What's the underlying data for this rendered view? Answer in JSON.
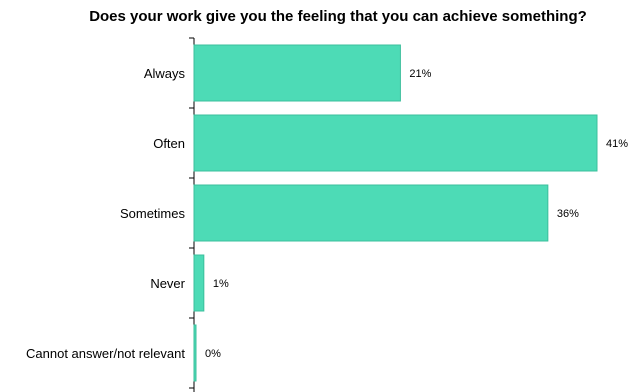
{
  "chart_data": {
    "type": "bar",
    "orientation": "horizontal",
    "title": "Does your work give you the feeling that you can achieve something?",
    "categories": [
      "Always",
      "Often",
      "Sometimes",
      "Never",
      "Cannot answer/not relevant"
    ],
    "values": [
      21,
      41,
      36,
      1,
      0
    ],
    "value_labels": [
      "21%",
      "41%",
      "36%",
      "1%",
      "0%"
    ],
    "xlim": [
      0,
      41
    ],
    "grid": false,
    "bar_color": "#4ddbb6",
    "bar_edge_color": "#3bbf9c"
  }
}
